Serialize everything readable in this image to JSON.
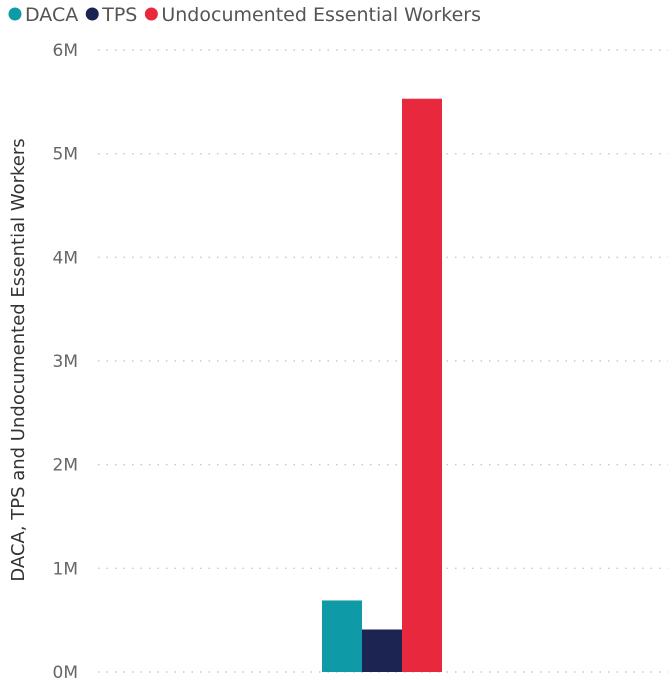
{
  "chart_data": {
    "type": "bar",
    "title": "",
    "xlabel": "",
    "ylabel": "DACA, TPS and Undocumented Essential Workers",
    "ylim": [
      0,
      6000000
    ],
    "yticks": [
      {
        "value": 0,
        "label": "0M"
      },
      {
        "value": 1000000,
        "label": "1M"
      },
      {
        "value": 2000000,
        "label": "2M"
      },
      {
        "value": 3000000,
        "label": "3M"
      },
      {
        "value": 4000000,
        "label": "4M"
      },
      {
        "value": 5000000,
        "label": "5M"
      },
      {
        "value": 6000000,
        "label": "6M"
      }
    ],
    "grid": true,
    "legend_position": "top-left",
    "series": [
      {
        "name": "DACA",
        "color": "#0e9aa7",
        "value": 690000
      },
      {
        "name": "TPS",
        "color": "#1c2452",
        "value": 410000
      },
      {
        "name": "Undocumented Essential Workers",
        "color": "#e8283c",
        "value": 5530000
      }
    ]
  }
}
